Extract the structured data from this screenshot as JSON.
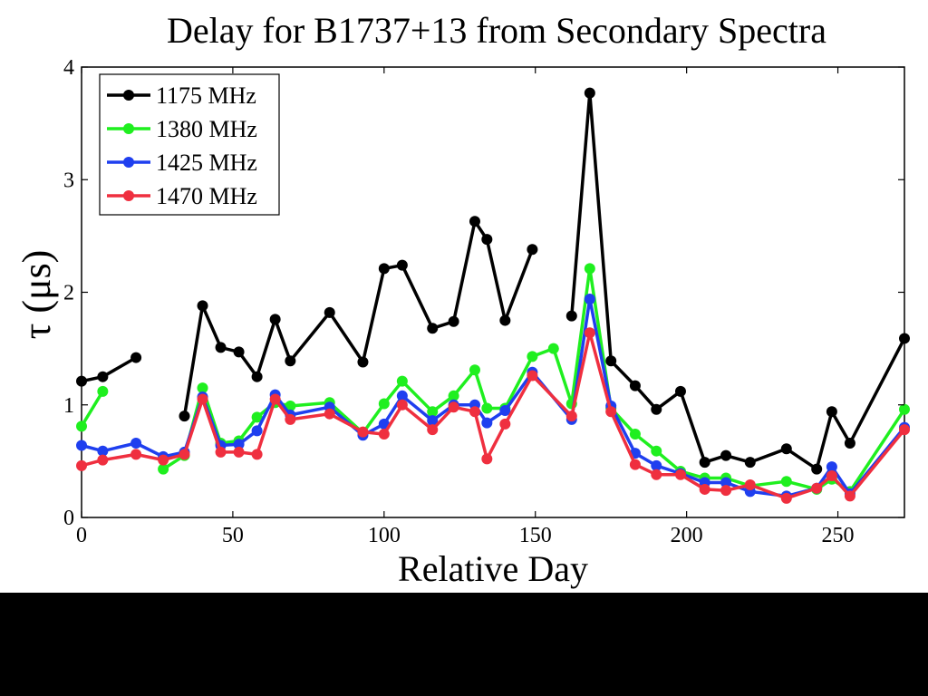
{
  "chart_data": {
    "type": "line",
    "title": "Delay for B1737+13 from Secondary Spectra",
    "xlabel": "Relative Day",
    "ylabel": "τ (μs)",
    "xlim": [
      0,
      272
    ],
    "ylim": [
      0,
      4
    ],
    "xticks": [
      "0",
      "50",
      "100",
      "150",
      "200",
      "250"
    ],
    "yticks": [
      "0",
      "1",
      "2",
      "3",
      "4"
    ],
    "grid": false,
    "legend_position": "top-left",
    "series": [
      {
        "name": "1175 MHz",
        "color": "#000000",
        "x": [
          0,
          7,
          18,
          null,
          34,
          40,
          46,
          52,
          58,
          64,
          69,
          82,
          93,
          100,
          106,
          116,
          123,
          130,
          134,
          140,
          149,
          null,
          162,
          168,
          175,
          183,
          190,
          198,
          206,
          213,
          221,
          233,
          243,
          248,
          254,
          272
        ],
        "y": [
          1.21,
          1.25,
          1.42,
          null,
          0.9,
          1.88,
          1.51,
          1.47,
          1.25,
          1.76,
          1.39,
          1.82,
          1.38,
          2.21,
          2.24,
          1.68,
          1.74,
          2.63,
          2.47,
          1.75,
          2.38,
          null,
          1.79,
          3.77,
          1.39,
          1.17,
          0.96,
          1.12,
          0.49,
          0.55,
          0.49,
          0.61,
          0.43,
          0.94,
          0.66,
          1.59
        ]
      },
      {
        "name": "1380 MHz",
        "color": "#1fef1f",
        "x": [
          0,
          7,
          null,
          27,
          34,
          40,
          46,
          52,
          58,
          64,
          69,
          82,
          93,
          100,
          106,
          116,
          123,
          130,
          134,
          140,
          149,
          156,
          162,
          168,
          175,
          183,
          190,
          198,
          206,
          213,
          221,
          233,
          243,
          248,
          254,
          272
        ],
        "y": [
          0.81,
          1.12,
          null,
          0.43,
          0.55,
          1.15,
          0.66,
          0.68,
          0.89,
          1.02,
          0.99,
          1.02,
          0.75,
          1.01,
          1.21,
          0.94,
          1.08,
          1.31,
          0.97,
          0.97,
          1.43,
          1.5,
          1.01,
          2.21,
          0.97,
          0.74,
          0.59,
          0.41,
          0.35,
          0.35,
          0.28,
          0.32,
          0.25,
          0.34,
          0.23,
          0.96
        ]
      },
      {
        "name": "1425 MHz",
        "color": "#1f3fef",
        "x": [
          0,
          7,
          18,
          27,
          34,
          40,
          46,
          52,
          58,
          64,
          69,
          82,
          93,
          100,
          106,
          116,
          123,
          130,
          134,
          140,
          149,
          162,
          168,
          175,
          183,
          190,
          198,
          206,
          213,
          221,
          233,
          243,
          248,
          254,
          272
        ],
        "y": [
          0.64,
          0.59,
          0.66,
          0.54,
          0.58,
          1.07,
          0.64,
          0.65,
          0.77,
          1.09,
          0.91,
          0.98,
          0.73,
          0.83,
          1.08,
          0.86,
          1.0,
          1.0,
          0.84,
          0.95,
          1.29,
          0.87,
          1.94,
          0.99,
          0.57,
          0.46,
          0.39,
          0.31,
          0.31,
          0.23,
          0.19,
          0.26,
          0.45,
          0.21,
          0.8
        ]
      },
      {
        "name": "1470 MHz",
        "color": "#ef2f3f",
        "x": [
          0,
          7,
          18,
          27,
          34,
          40,
          46,
          52,
          58,
          64,
          69,
          82,
          93,
          100,
          106,
          116,
          123,
          130,
          134,
          140,
          149,
          162,
          168,
          175,
          183,
          190,
          198,
          206,
          213,
          221,
          233,
          243,
          248,
          254,
          272
        ],
        "y": [
          0.46,
          0.51,
          0.56,
          0.51,
          0.56,
          1.05,
          0.58,
          0.58,
          0.56,
          1.05,
          0.87,
          0.92,
          0.76,
          0.74,
          1.0,
          0.78,
          0.98,
          0.94,
          0.52,
          0.83,
          1.26,
          0.9,
          1.64,
          0.94,
          0.47,
          0.38,
          0.38,
          0.25,
          0.24,
          0.29,
          0.17,
          0.26,
          0.37,
          0.19,
          0.78
        ]
      }
    ]
  }
}
